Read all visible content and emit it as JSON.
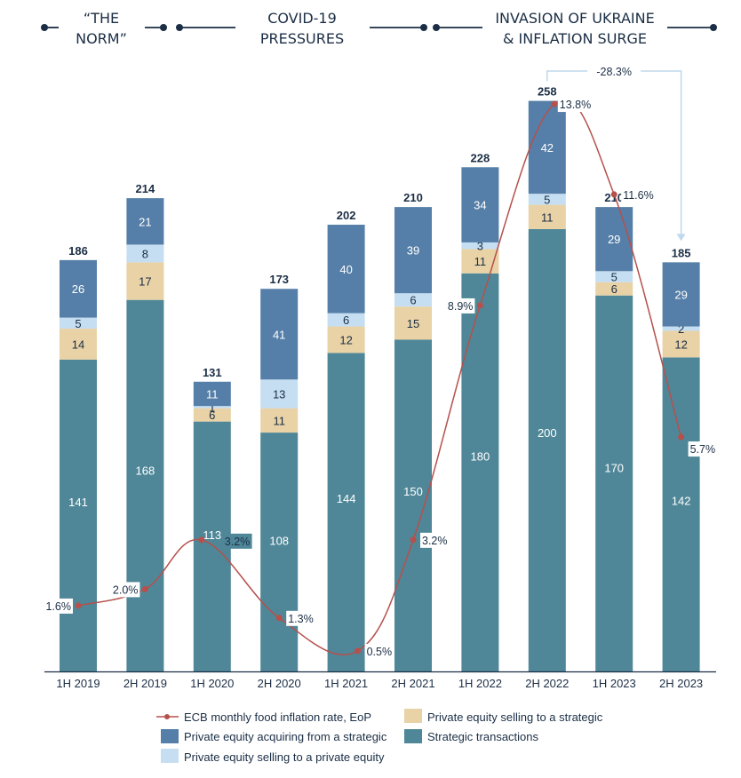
{
  "phases": [
    {
      "line1": "“THE",
      "line2": "NORM”"
    },
    {
      "line1": "COVID-19",
      "line2": "PRESSURES"
    },
    {
      "line1": "INVASION OF UKRAINE",
      "line2": "& INFLATION SURGE"
    }
  ],
  "colors": {
    "strategic": "#4f8798",
    "pe_selling_strategic": "#e8d2a6",
    "pe_selling_pe": "#c6def2",
    "pe_acquiring_strategic": "#557fa8",
    "inflation_line": "#b5504c",
    "text_dark": "#1b2e45",
    "arrow": "#c0d8ec"
  },
  "chart_data": {
    "type": "bar",
    "stacked": true,
    "categories": [
      "1H 2019",
      "2H 2019",
      "1H 2020",
      "2H 2020",
      "1H 2021",
      "2H 2021",
      "1H 2022",
      "2H 2022",
      "1H 2023",
      "2H 2023"
    ],
    "series": [
      {
        "name": "Strategic transactions",
        "key": "strategic",
        "values": [
          141,
          168,
          113,
          108,
          144,
          150,
          180,
          200,
          170,
          142
        ]
      },
      {
        "name": "Private equity selling to a strategic",
        "key": "pe_selling_strategic",
        "values": [
          14,
          17,
          6,
          11,
          12,
          15,
          11,
          11,
          6,
          12
        ]
      },
      {
        "name": "Private equity selling to a private equity",
        "key": "pe_selling_pe",
        "values": [
          5,
          8,
          1,
          13,
          6,
          6,
          3,
          5,
          5,
          2
        ]
      },
      {
        "name": "Private equity acquiring from a strategic",
        "key": "pe_acquiring_strategic",
        "values": [
          26,
          21,
          11,
          41,
          40,
          39,
          34,
          42,
          29,
          29
        ]
      }
    ],
    "totals": [
      186,
      214,
      131,
      173,
      202,
      210,
      228,
      258,
      210,
      185
    ],
    "line_series": {
      "name": "ECB monthly food inflation rate, EoP",
      "values": [
        1.6,
        2.0,
        3.2,
        1.3,
        0.5,
        3.2,
        8.9,
        13.8,
        11.6,
        5.7
      ],
      "labels": [
        "1.6%",
        "2.0%",
        "3.2%",
        "1.3%",
        "0.5%",
        "3.2%",
        "8.9%",
        "13.8%",
        "11.6%",
        "5.7%"
      ]
    },
    "annotation": {
      "text": "-28.3%",
      "from": "2H 2022",
      "to": "2H 2023"
    },
    "legend": [
      {
        "label": "ECB monthly food inflation rate, EoP",
        "type": "line",
        "key": "inflation_line"
      },
      {
        "label": "Private equity selling to a strategic",
        "type": "box",
        "key": "pe_selling_strategic"
      },
      {
        "label": "Private equity acquiring from a strategic",
        "type": "box",
        "key": "pe_acquiring_strategic"
      },
      {
        "label": "Strategic transactions",
        "type": "box",
        "key": "strategic"
      },
      {
        "label": "Private equity selling to a private equity",
        "type": "box",
        "key": "pe_selling_pe"
      }
    ],
    "legend_position": "bottom",
    "title": "",
    "xlabel": "",
    "ylabel": "",
    "grid": false
  }
}
